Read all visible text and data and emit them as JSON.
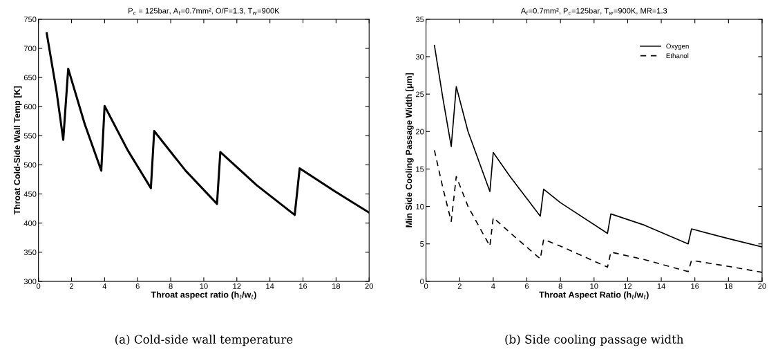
{
  "chart_data": [
    {
      "type": "line",
      "title": "P$_{c}$ = 125bar, A$_{t}$=0.7mm², O/F=1.3, T$_{w}$=900K",
      "xlabel": "Throat aspect ratio (h$_{t}$/w$_{t}$)",
      "ylabel": "Throat Cold-Side Wall Temp [K]",
      "x": [
        0.5,
        1.1,
        1.5,
        1.8,
        2.8,
        3.8,
        4.0,
        5.4,
        6.8,
        7.0,
        8.9,
        10.8,
        11.0,
        13.2,
        15.5,
        15.8,
        17.9,
        20
      ],
      "series": [
        {
          "color": "#000000",
          "line_style": "solid",
          "values": [
            726,
            625,
            543,
            665,
            570,
            490,
            601,
            525,
            460,
            558,
            490,
            433,
            522,
            465,
            414,
            494,
            455,
            418
          ]
        }
      ],
      "xlim": [
        0,
        20
      ],
      "xticks": [
        0,
        2,
        4,
        6,
        8,
        10,
        12,
        14,
        16,
        18,
        20
      ],
      "ylim": [
        300,
        750
      ],
      "yticks": [
        300,
        350,
        400,
        450,
        500,
        550,
        600,
        650,
        700,
        750
      ],
      "grid": false,
      "legend": false,
      "annotations": [
        "(a) Cold-side wall temperature"
      ]
    },
    {
      "type": "line",
      "title": "A$_{t}$=0.7mm², P$_{c}$=125bar, T$_{w}$=900K, MR=1.3",
      "xlabel": "Throat Aspect Ratio (h$_{t}$/w$_{t}$)",
      "ylabel": "Min Side Cooling Passage Width [μm]",
      "x": [
        0.5,
        1.0,
        1.5,
        1.8,
        2.5,
        3.8,
        4.0,
        5.0,
        6.8,
        7.0,
        8.0,
        10.8,
        11.0,
        13.0,
        15.6,
        15.8,
        18.0,
        20
      ],
      "series": [
        {
          "name": "Oxygen",
          "color": "#000000",
          "line_style": "solid",
          "values": [
            31.5,
            24.5,
            18,
            26,
            20,
            12,
            17.2,
            14,
            8.7,
            12.3,
            10.5,
            6.4,
            9,
            7.5,
            5,
            7,
            5.7,
            4.6
          ]
        },
        {
          "name": "Ethanol",
          "color": "#000000",
          "line_style": "dashed",
          "values": [
            17.5,
            12.5,
            8,
            14,
            10,
            4.7,
            8.5,
            6.5,
            3,
            5.6,
            4.7,
            1.9,
            3.9,
            2.9,
            1.3,
            2.8,
            2,
            1.2
          ]
        }
      ],
      "xlim": [
        0,
        20
      ],
      "xticks": [
        0,
        2,
        4,
        6,
        8,
        10,
        12,
        14,
        16,
        18,
        20
      ],
      "ylim": [
        0,
        35
      ],
      "yticks": [
        0,
        5,
        10,
        15,
        20,
        25,
        30,
        35
      ],
      "grid": false,
      "legend": "top right",
      "annotations": [
        "(b) Side cooling passage width"
      ]
    }
  ]
}
